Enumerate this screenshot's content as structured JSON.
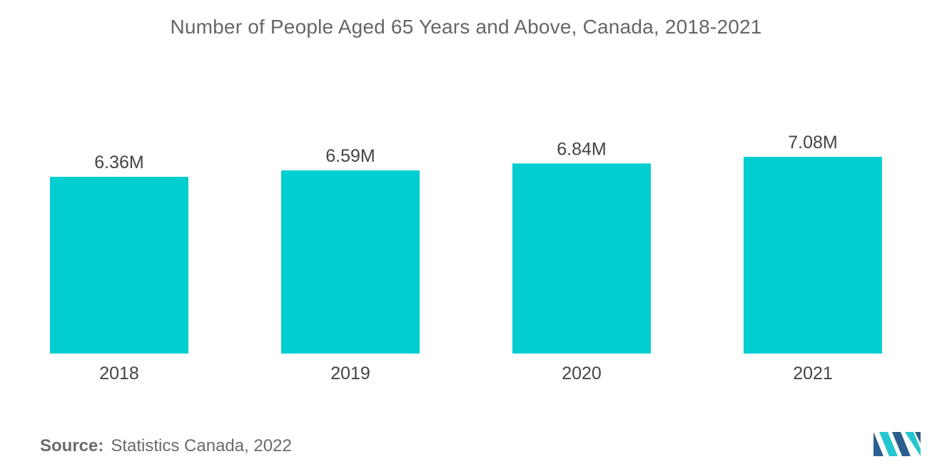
{
  "chart_data": {
    "type": "bar",
    "title": "Number of People Aged 65 Years and Above, Canada, 2018-2021",
    "categories": [
      "2018",
      "2019",
      "2020",
      "2021"
    ],
    "values": [
      6.36,
      6.59,
      6.84,
      7.08
    ],
    "value_labels": [
      "6.36M",
      "6.59M",
      "6.84M",
      "7.08M"
    ],
    "unit": "M",
    "xlabel": "",
    "ylabel": "",
    "ylim": [
      0,
      7.08
    ],
    "grid": false,
    "legend": "none",
    "bar_color": "#00CED1"
  },
  "source": {
    "label": "Source:",
    "text": "Statistics Canada, 2022"
  },
  "logo": {
    "icon": "mordor-intelligence-logo",
    "colors": [
      "#2B5F8F",
      "#26C6D0"
    ]
  }
}
